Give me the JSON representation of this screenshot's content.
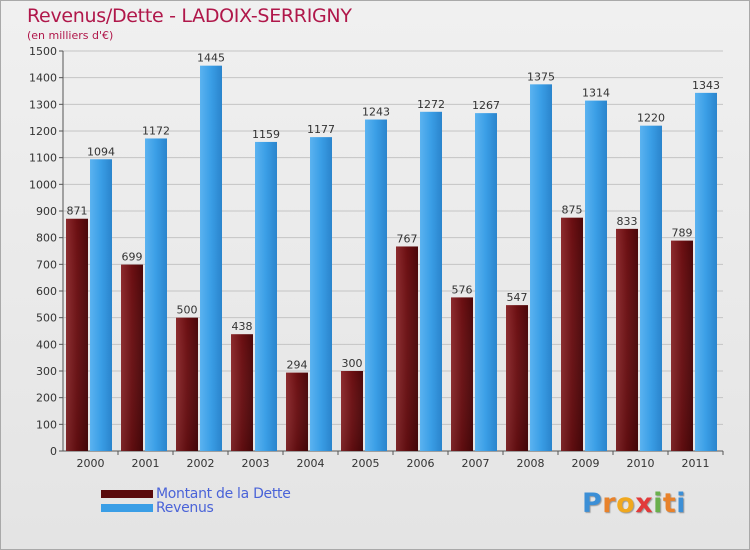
{
  "title": "Revenus/Dette - LADOIX-SERRIGNY",
  "subtitle": "(en milliers d'€)",
  "logo": {
    "letters": [
      "P",
      "r",
      "o",
      "x",
      "i",
      "t",
      "i"
    ],
    "colors": [
      "#3c8fd6",
      "#e8822b",
      "#f0a81e",
      "#e23a3a",
      "#6ab04c",
      "#e8822b",
      "#3c8fd6"
    ]
  },
  "colors": {
    "debt": "#6b0f12",
    "revenue": "#3a9ee6",
    "title": "#b0174a",
    "legend_text": "#4a63d8"
  },
  "legend": [
    {
      "label": "Montant de la Dette",
      "color": "#5a0a0c"
    },
    {
      "label": "Revenus",
      "color": "#3a9ee6"
    }
  ],
  "chart_data": {
    "type": "bar",
    "title": "Revenus/Dette - LADOIX-SERRIGNY",
    "ylabel": "(en milliers d'€)",
    "categories": [
      "2000",
      "2001",
      "2002",
      "2003",
      "2004",
      "2005",
      "2006",
      "2007",
      "2008",
      "2009",
      "2010",
      "2011"
    ],
    "series": [
      {
        "name": "Montant de la Dette",
        "values": [
          871,
          699,
          500,
          438,
          294,
          300,
          767,
          576,
          547,
          875,
          833,
          789
        ]
      },
      {
        "name": "Revenus",
        "values": [
          1094,
          1172,
          1445,
          1159,
          1177,
          1243,
          1272,
          1267,
          1375,
          1314,
          1220,
          1343
        ]
      }
    ],
    "ylim": [
      0,
      1500
    ],
    "yticks": [
      0,
      100,
      200,
      300,
      400,
      500,
      600,
      700,
      800,
      900,
      1000,
      1100,
      1200,
      1300,
      1400,
      1500
    ],
    "grid": true,
    "legend_position": "bottom-left"
  }
}
